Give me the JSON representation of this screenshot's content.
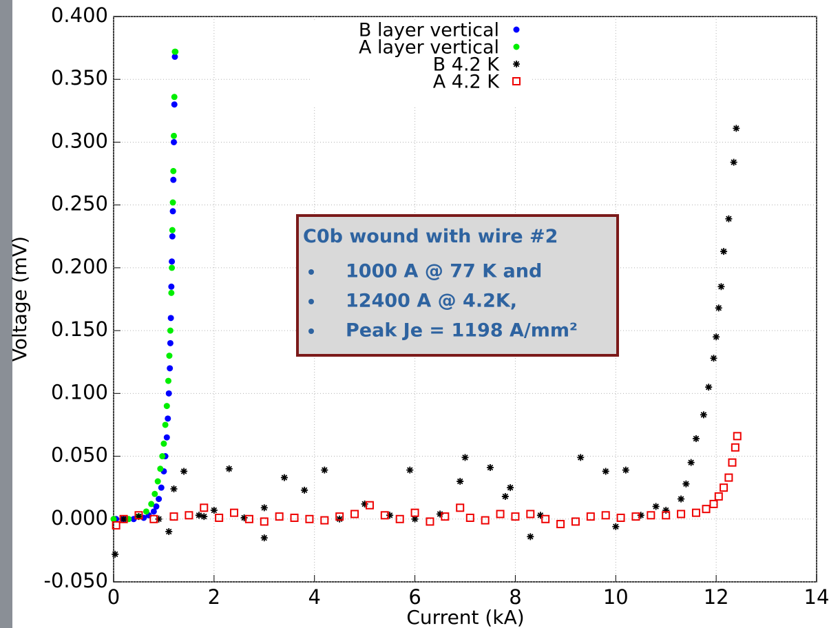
{
  "chart_data": {
    "type": "scatter",
    "x_label": "Current (kA)",
    "y_label": "Voltage (mV)",
    "xlim": [
      0,
      14
    ],
    "ylim": [
      -0.05,
      0.4
    ],
    "xticks": [
      0,
      2,
      4,
      6,
      8,
      10,
      12,
      14
    ],
    "yticks": [
      {
        "value": -0.05,
        "label": "-0.050"
      },
      {
        "value": 0,
        "label": "0.000"
      },
      {
        "value": 0.05,
        "label": "0.050"
      },
      {
        "value": 0.1,
        "label": "0.100"
      },
      {
        "value": 0.15,
        "label": "0.150"
      },
      {
        "value": 0.2,
        "label": "0.200"
      },
      {
        "value": 0.25,
        "label": "0.250"
      },
      {
        "value": 0.3,
        "label": "0.300"
      },
      {
        "value": 0.35,
        "label": "0.350"
      },
      {
        "value": 0.4,
        "label": "0.400"
      }
    ],
    "grid": true,
    "legend": "top",
    "annotation": {
      "title": "C0b wound with wire #2",
      "bullets": [
        "1000 A @ 77 K and",
        "12400 A @ 4.2K,",
        "Peak Je = 1198 A/mm²"
      ]
    },
    "series": [
      {
        "name": "B layer vertical",
        "color": "#0000ff",
        "marker": "circle",
        "x": [
          0.05,
          0.2,
          0.4,
          0.6,
          0.7,
          0.8,
          0.85,
          0.9,
          0.95,
          1.0,
          1.03,
          1.06,
          1.08,
          1.1,
          1.12,
          1.13,
          1.14,
          1.15,
          1.16,
          1.17,
          1.18,
          1.19,
          1.2,
          1.21,
          1.22
        ],
        "values": [
          0,
          0,
          0,
          0.001,
          0.003,
          0.006,
          0.01,
          0.016,
          0.025,
          0.038,
          0.05,
          0.065,
          0.08,
          0.1,
          0.12,
          0.14,
          0.16,
          0.185,
          0.205,
          0.225,
          0.245,
          0.27,
          0.3,
          0.33,
          0.368
        ]
      },
      {
        "name": "A layer vertical",
        "color": "#00ee00",
        "marker": "circle",
        "x": [
          0.0,
          0.3,
          0.5,
          0.65,
          0.75,
          0.82,
          0.88,
          0.93,
          0.97,
          1.0,
          1.03,
          1.06,
          1.09,
          1.11,
          1.13,
          1.15,
          1.16,
          1.17,
          1.18,
          1.19,
          1.2,
          1.21,
          1.22,
          1.23
        ],
        "values": [
          0,
          0,
          0.002,
          0.006,
          0.012,
          0.02,
          0.03,
          0.04,
          0.05,
          0.06,
          0.075,
          0.09,
          0.11,
          0.13,
          0.15,
          0.18,
          0.2,
          0.23,
          0.252,
          0.277,
          0.305,
          0.336,
          0.372,
          0.372
        ]
      },
      {
        "name": "B 4.2 K",
        "color": "#000000",
        "marker": "star",
        "x": [
          0.03,
          0.2,
          0.5,
          0.9,
          1.1,
          1.2,
          1.4,
          1.7,
          1.8,
          2.0,
          2.3,
          2.6,
          3.0,
          3.0,
          3.4,
          3.8,
          4.2,
          4.5,
          5.0,
          5.5,
          5.9,
          6.0,
          6.5,
          6.9,
          7.0,
          7.5,
          7.8,
          7.9,
          8.3,
          8.5,
          9.3,
          9.8,
          10.0,
          10.2,
          10.5,
          10.8,
          11.0,
          11.3,
          11.4,
          11.5,
          11.6,
          11.75,
          11.85,
          11.95,
          12.0,
          12.05,
          12.1,
          12.15,
          12.25,
          12.35,
          12.4
        ],
        "values": [
          -0.028,
          0,
          0.002,
          0,
          -0.01,
          0.024,
          0.038,
          0.003,
          0.002,
          0.007,
          0.04,
          0.001,
          -0.015,
          0.009,
          0.033,
          0.023,
          0.039,
          0,
          0.012,
          0.003,
          0.039,
          0,
          0.004,
          0.03,
          0.049,
          0.041,
          0.018,
          0.025,
          -0.014,
          0.003,
          0.049,
          0.038,
          -0.006,
          0.039,
          0.003,
          0.01,
          0.007,
          0.016,
          0.028,
          0.045,
          0.064,
          0.083,
          0.105,
          0.128,
          0.145,
          0.168,
          0.185,
          0.213,
          0.239,
          0.284,
          0.311
        ]
      },
      {
        "name": "A 4.2 K",
        "color": "#ee0000",
        "marker": "square",
        "x": [
          0.05,
          0.2,
          0.5,
          0.8,
          1.2,
          1.5,
          1.8,
          2.1,
          2.4,
          2.7,
          3.0,
          3.3,
          3.6,
          3.9,
          4.2,
          4.5,
          4.8,
          5.1,
          5.4,
          5.7,
          6.0,
          6.3,
          6.6,
          6.9,
          7.1,
          7.4,
          7.7,
          8.0,
          8.3,
          8.6,
          8.9,
          9.2,
          9.5,
          9.8,
          10.1,
          10.4,
          10.7,
          11.0,
          11.3,
          11.6,
          11.8,
          11.95,
          12.05,
          12.15,
          12.25,
          12.32,
          12.38,
          12.42
        ],
        "values": [
          -0.005,
          0,
          0.003,
          0,
          0.002,
          0.003,
          0.009,
          0.001,
          0.005,
          0,
          -0.002,
          0.002,
          0.001,
          0,
          -0.001,
          0.002,
          0.004,
          0.011,
          0.003,
          0,
          0.005,
          -0.002,
          0.002,
          0.009,
          0.001,
          -0.001,
          0.004,
          0.002,
          0.004,
          0,
          -0.004,
          -0.002,
          0.002,
          0.003,
          0.001,
          0.002,
          0.003,
          0.003,
          0.004,
          0.005,
          0.008,
          0.012,
          0.018,
          0.025,
          0.033,
          0.045,
          0.057,
          0.066
        ]
      }
    ]
  }
}
